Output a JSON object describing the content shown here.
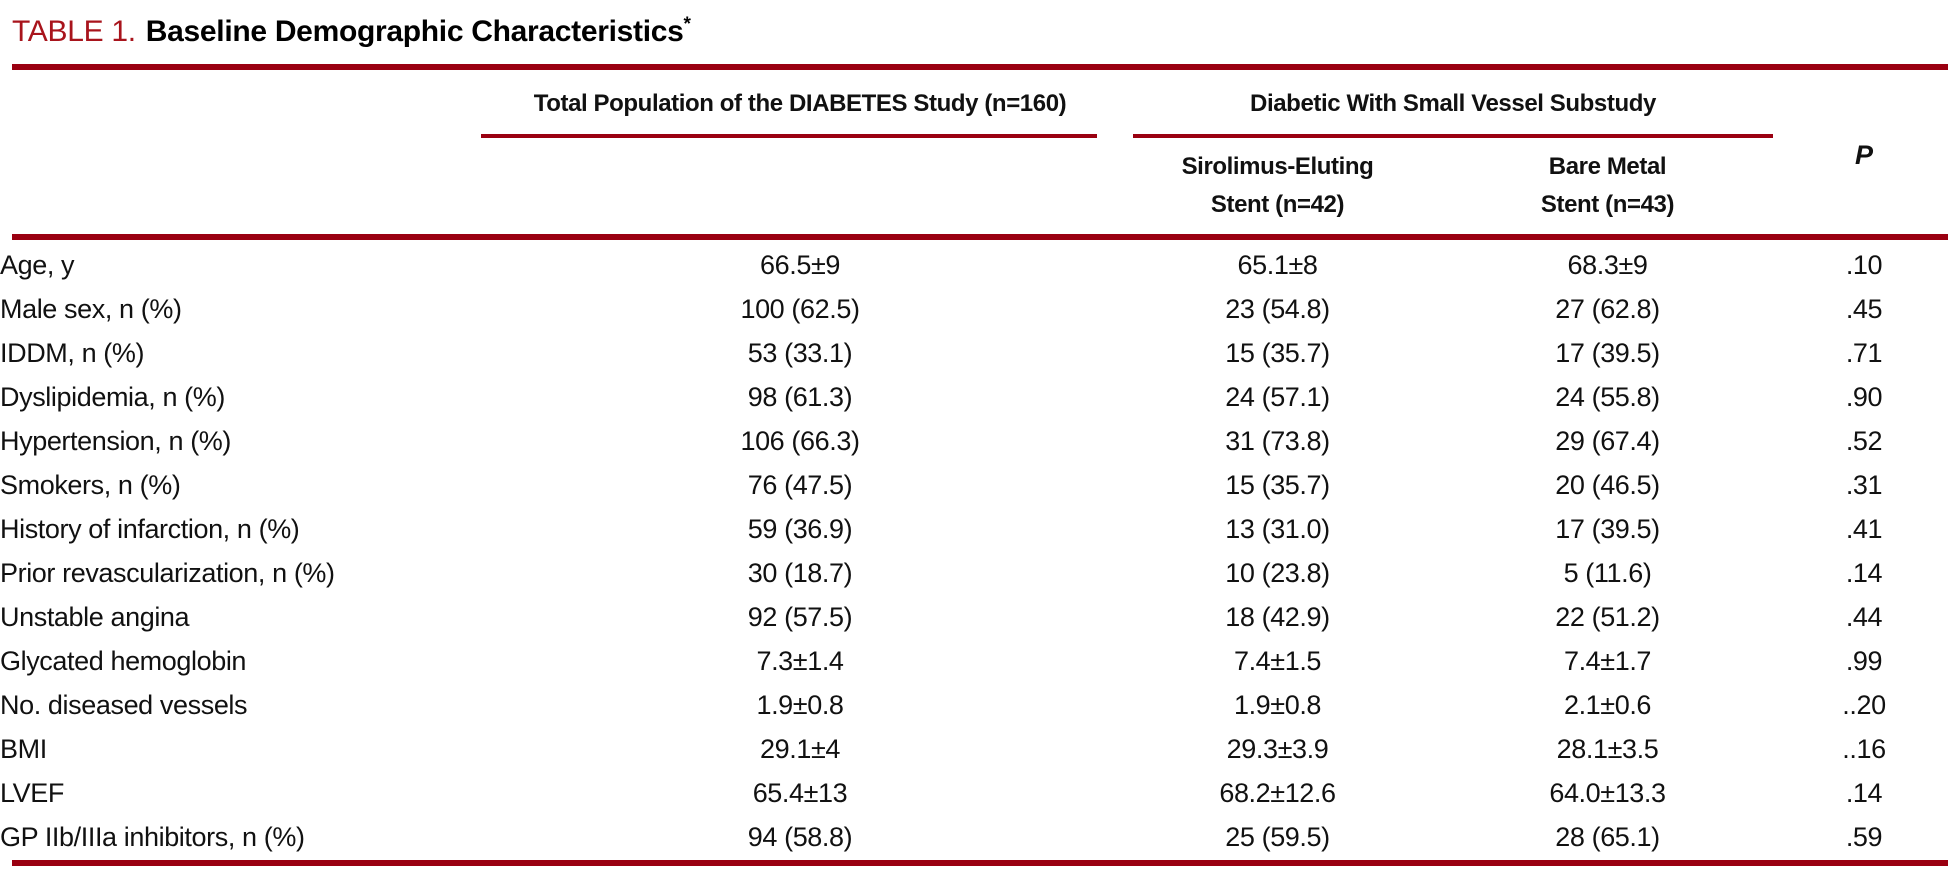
{
  "colors": {
    "rule_red": "#9A0011",
    "title_red": "#A8141C",
    "text_black": "#111111"
  },
  "title": {
    "label": "TABLE 1.",
    "text": "Baseline Demographic Characteristics",
    "asterisk": "*"
  },
  "header": {
    "group1": "Total Population of the DIABETES Study (n=160)",
    "group2": "Diabetic With Small Vessel Substudy",
    "col_ses_line1": "Sirolimus-Eluting",
    "col_ses_line2": "Stent (n=42)",
    "col_bms_line1": "Bare Metal",
    "col_bms_line2": "Stent (n=43)",
    "p_label": "P"
  },
  "table": {
    "rows": [
      {
        "label": "Age, y",
        "total": "66.5±9",
        "ses": "65.1±8",
        "bms": "68.3±9",
        "p": ".10"
      },
      {
        "label": "Male sex, n (%)",
        "total": "100 (62.5)",
        "ses": "23 (54.8)",
        "bms": "27 (62.8)",
        "p": ".45"
      },
      {
        "label": "IDDM, n (%)",
        "total": "53 (33.1)",
        "ses": "15 (35.7)",
        "bms": "17 (39.5)",
        "p": ".71"
      },
      {
        "label": "Dyslipidemia, n (%)",
        "total": "98 (61.3)",
        "ses": "24 (57.1)",
        "bms": "24 (55.8)",
        "p": ".90"
      },
      {
        "label": "Hypertension, n (%)",
        "total": "106 (66.3)",
        "ses": "31 (73.8)",
        "bms": "29 (67.4)",
        "p": ".52"
      },
      {
        "label": "Smokers, n (%)",
        "total": "76 (47.5)",
        "ses": "15 (35.7)",
        "bms": "20 (46.5)",
        "p": ".31"
      },
      {
        "label": "History of infarction, n (%)",
        "total": "59 (36.9)",
        "ses": "13 (31.0)",
        "bms": "17 (39.5)",
        "p": ".41"
      },
      {
        "label": "Prior revascularization, n (%)",
        "total": "30 (18.7)",
        "ses": "10 (23.8)",
        "bms": "5 (11.6)",
        "p": ".14"
      },
      {
        "label": "Unstable angina",
        "total": "92 (57.5)",
        "ses": "18 (42.9)",
        "bms": "22 (51.2)",
        "p": ".44"
      },
      {
        "label": "Glycated hemoglobin",
        "total": "7.3±1.4",
        "ses": "7.4±1.5",
        "bms": "7.4±1.7",
        "p": ".99"
      },
      {
        "label": "No. diseased vessels",
        "total": "1.9±0.8",
        "ses": "1.9±0.8",
        "bms": "2.1±0.6",
        "p": "..20"
      },
      {
        "label": "BMI",
        "total": "29.1±4",
        "ses": "29.3±3.9",
        "bms": "28.1±3.5",
        "p": "..16"
      },
      {
        "label": "LVEF",
        "total": "65.4±13",
        "ses": "68.2±12.6",
        "bms": "64.0±13.3",
        "p": ".14"
      },
      {
        "label": "GP IIb/IIIa inhibitors, n (%)",
        "total": "94 (58.8)",
        "ses": "25 (59.5)",
        "bms": "28 (65.1)",
        "p": ".59"
      }
    ]
  }
}
